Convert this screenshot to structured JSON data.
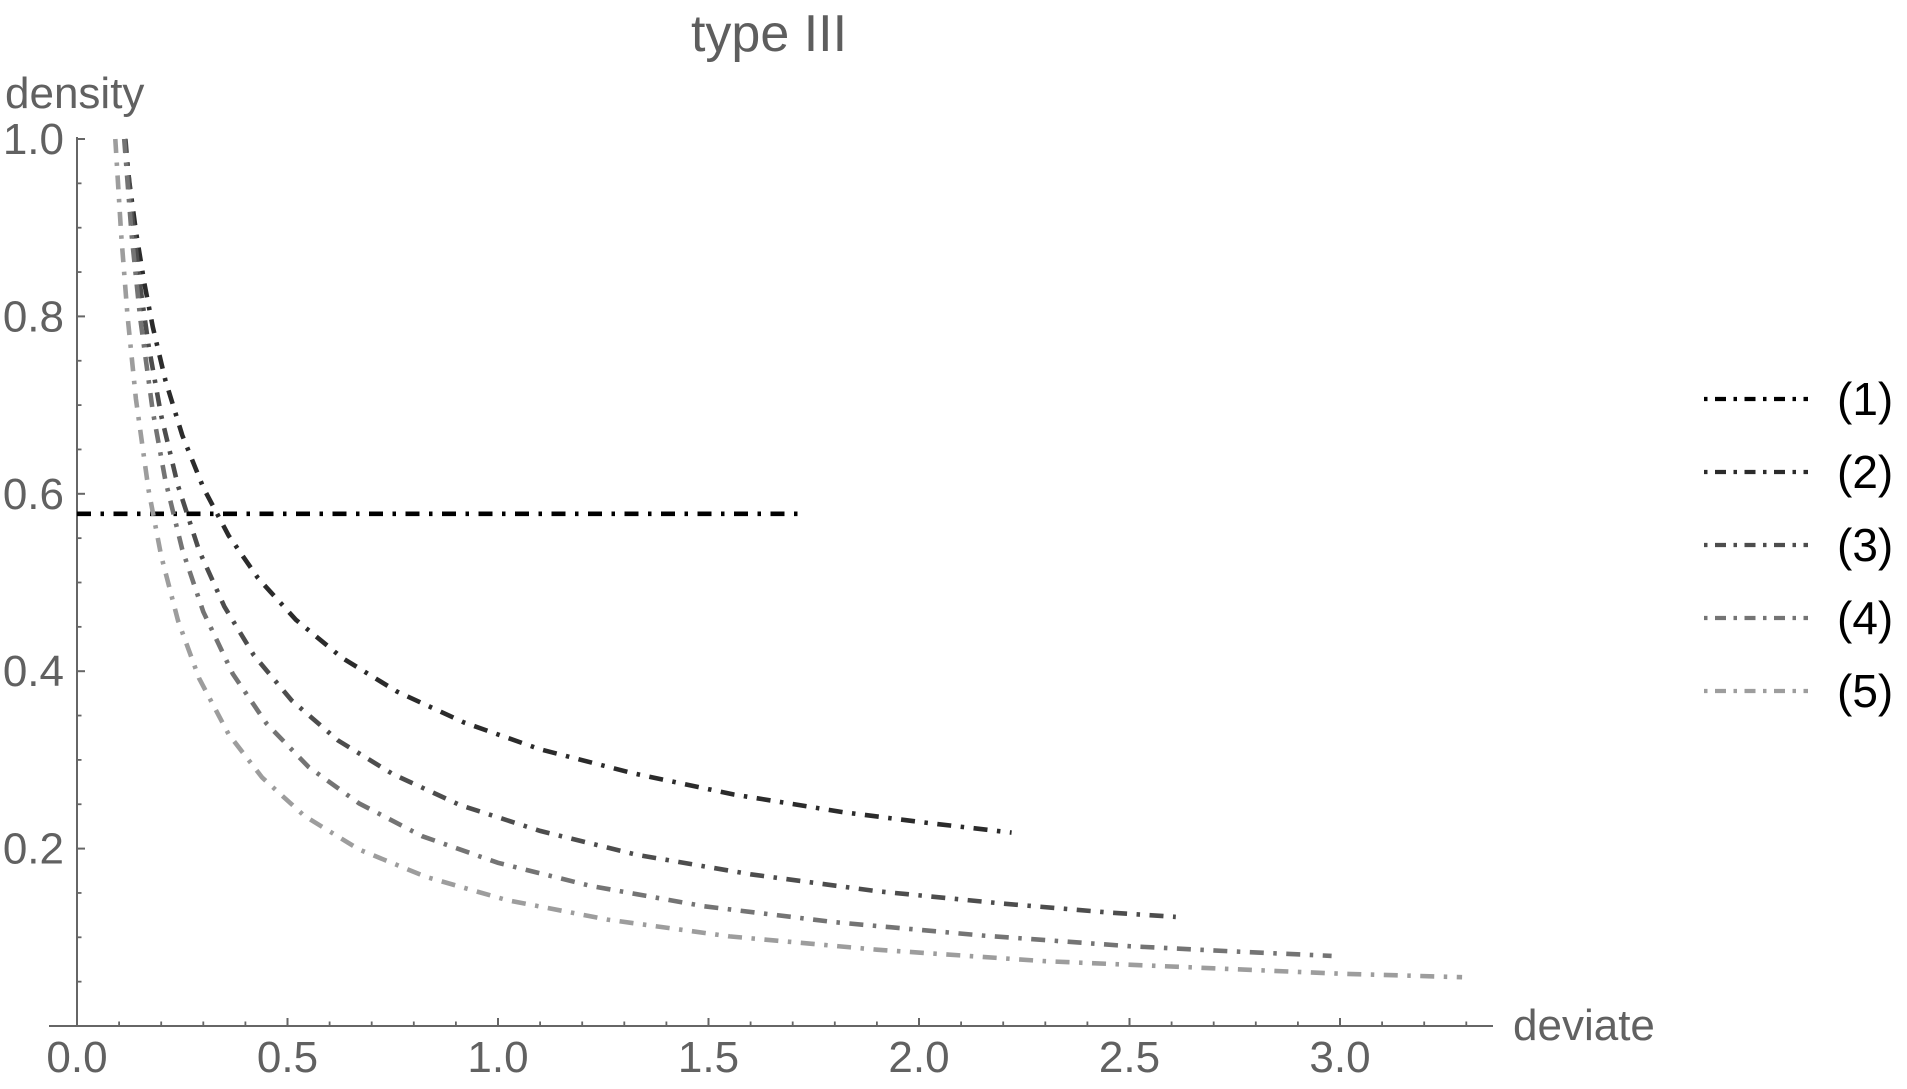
{
  "title": "type III",
  "axes": {
    "x_label": "deviate",
    "y_label": "density",
    "x_ticks": [
      {
        "value": 0.0,
        "label": "0.0"
      },
      {
        "value": 0.5,
        "label": "0.5"
      },
      {
        "value": 1.0,
        "label": "1.0"
      },
      {
        "value": 1.5,
        "label": "1.5"
      },
      {
        "value": 2.0,
        "label": "2.0"
      },
      {
        "value": 2.5,
        "label": "2.5"
      },
      {
        "value": 3.0,
        "label": "3.0"
      }
    ],
    "y_ticks": [
      {
        "value": 1.0,
        "label": "1.0"
      },
      {
        "value": 0.8,
        "label": "0.8"
      },
      {
        "value": 0.6,
        "label": "0.6"
      },
      {
        "value": 0.4,
        "label": "0.4"
      },
      {
        "value": 0.2,
        "label": "0.2"
      }
    ],
    "x_minor_step": 0.1,
    "x_minor_max": 3.3,
    "y_minor_step": 0.05,
    "y_minor_max": 0.95
  },
  "colors": {
    "axis": "#666666",
    "tick_text": "#616161",
    "title_text": "#5e5e5e",
    "legend_text": "#000000"
  },
  "legend": {
    "entries": [
      {
        "label": "(1)",
        "color": "#000000"
      },
      {
        "label": "(2)",
        "color": "#2b2b2b"
      },
      {
        "label": "(3)",
        "color": "#4d4d4d"
      },
      {
        "label": "(4)",
        "color": "#747474"
      },
      {
        "label": "(5)",
        "color": "#9d9d9d"
      }
    ]
  },
  "chart_data": {
    "type": "line",
    "title": "type III",
    "xlabel": "deviate",
    "ylabel": "density",
    "xlim": [
      0,
      3.36
    ],
    "ylim": [
      0,
      1.0
    ],
    "grid": false,
    "legend_position": "right-outside",
    "line_style": "dash-dot",
    "series": [
      {
        "name": "(1)",
        "color": "#000000",
        "points": [
          [
            0.0,
            0.5774
          ],
          [
            1.732,
            0.5774
          ]
        ]
      },
      {
        "name": "(2)",
        "color": "#2b2b2b",
        "points": [
          [
            0.113,
            1.0
          ],
          [
            0.125,
            0.949
          ],
          [
            0.14,
            0.896
          ],
          [
            0.16,
            0.837
          ],
          [
            0.18,
            0.788
          ],
          [
            0.21,
            0.728
          ],
          [
            0.25,
            0.666
          ],
          [
            0.3,
            0.607
          ],
          [
            0.36,
            0.553
          ],
          [
            0.43,
            0.505
          ],
          [
            0.52,
            0.458
          ],
          [
            0.63,
            0.415
          ],
          [
            0.76,
            0.377
          ],
          [
            0.92,
            0.342
          ],
          [
            1.1,
            0.312
          ],
          [
            1.32,
            0.285
          ],
          [
            1.56,
            0.261
          ],
          [
            1.82,
            0.241
          ],
          [
            2.02,
            0.229
          ],
          [
            2.22,
            0.218
          ]
        ]
      },
      {
        "name": "(3)",
        "color": "#4d4d4d",
        "points": [
          [
            0.115,
            1.0
          ],
          [
            0.13,
            0.918
          ],
          [
            0.15,
            0.834
          ],
          [
            0.17,
            0.767
          ],
          [
            0.2,
            0.688
          ],
          [
            0.24,
            0.609
          ],
          [
            0.29,
            0.536
          ],
          [
            0.35,
            0.473
          ],
          [
            0.42,
            0.418
          ],
          [
            0.51,
            0.367
          ],
          [
            0.62,
            0.322
          ],
          [
            0.75,
            0.284
          ],
          [
            0.91,
            0.249
          ],
          [
            1.1,
            0.22
          ],
          [
            1.33,
            0.193
          ],
          [
            1.6,
            0.171
          ],
          [
            1.9,
            0.152
          ],
          [
            2.2,
            0.138
          ],
          [
            2.45,
            0.128
          ],
          [
            2.61,
            0.123
          ]
        ]
      },
      {
        "name": "(4)",
        "color": "#747474",
        "points": [
          [
            0.112,
            1.0
          ],
          [
            0.13,
            0.891
          ],
          [
            0.15,
            0.798
          ],
          [
            0.18,
            0.693
          ],
          [
            0.21,
            0.615
          ],
          [
            0.25,
            0.537
          ],
          [
            0.3,
            0.467
          ],
          [
            0.37,
            0.397
          ],
          [
            0.45,
            0.341
          ],
          [
            0.55,
            0.292
          ],
          [
            0.67,
            0.251
          ],
          [
            0.82,
            0.214
          ],
          [
            1.0,
            0.184
          ],
          [
            1.22,
            0.158
          ],
          [
            1.49,
            0.135
          ],
          [
            1.8,
            0.117
          ],
          [
            2.15,
            0.102
          ],
          [
            2.5,
            0.09
          ],
          [
            2.75,
            0.084
          ],
          [
            2.98,
            0.079
          ]
        ]
      },
      {
        "name": "(5)",
        "color": "#9d9d9d",
        "points": [
          [
            0.091,
            1.0
          ],
          [
            0.105,
            0.892
          ],
          [
            0.12,
            0.801
          ],
          [
            0.14,
            0.707
          ],
          [
            0.17,
            0.604
          ],
          [
            0.2,
            0.53
          ],
          [
            0.24,
            0.457
          ],
          [
            0.29,
            0.392
          ],
          [
            0.36,
            0.329
          ],
          [
            0.44,
            0.28
          ],
          [
            0.54,
            0.237
          ],
          [
            0.67,
            0.199
          ],
          [
            0.83,
            0.168
          ],
          [
            1.02,
            0.142
          ],
          [
            1.26,
            0.12
          ],
          [
            1.55,
            0.101
          ],
          [
            1.9,
            0.086
          ],
          [
            2.3,
            0.073
          ],
          [
            2.7,
            0.065
          ],
          [
            3.0,
            0.059
          ],
          [
            3.29,
            0.055
          ]
        ]
      }
    ]
  }
}
